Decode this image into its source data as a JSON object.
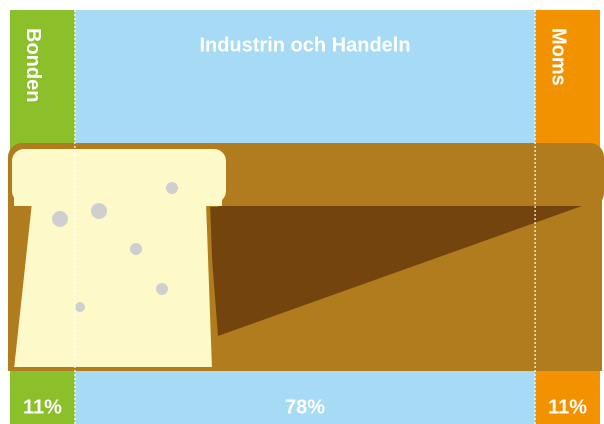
{
  "chart_data": {
    "type": "share-strip",
    "categories": [
      "Bonden",
      "Industrin och Handeln",
      "Moms"
    ],
    "values": [
      11,
      78,
      11
    ],
    "value_labels": [
      "11%",
      "78%",
      "11%"
    ],
    "colors": [
      "#8cc02a",
      "#a6daf5",
      "#f39200"
    ]
  }
}
